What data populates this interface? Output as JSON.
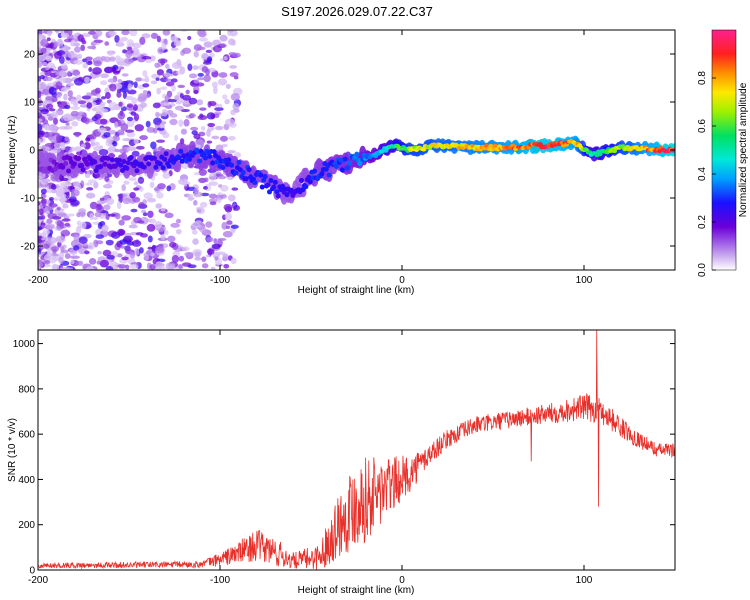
{
  "title": "S197.2026.029.07.22.C37",
  "colors": {
    "signal_line": "#e8302a",
    "axis": "#000000",
    "scatter_main": "#5a1fd6",
    "scatter_faint": "#c9b2f2"
  },
  "chart_data": [
    {
      "type": "heatmap",
      "xlabel": "Height of straight line (km)",
      "ylabel": "Frequency (Hz)",
      "xlim": [
        -200,
        150
      ],
      "ylim": [
        -25,
        25
      ],
      "xticks": [
        "-200",
        "-100",
        "0",
        "100"
      ],
      "yticks": [
        "20",
        "10",
        "0",
        "-10",
        "-20"
      ],
      "xtick_values": [
        -200,
        -100,
        0,
        100
      ],
      "ytick_values": [
        20,
        10,
        0,
        -10,
        -20
      ],
      "colorbar": {
        "label": "Normalized spectral amplitude",
        "range": [
          0,
          1
        ],
        "ticks": [
          "0.0",
          "0.2",
          "0.4",
          "0.6",
          "0.8"
        ],
        "tick_values": [
          0,
          0.2,
          0.4,
          0.6,
          0.8
        ]
      },
      "ridge": [
        {
          "x": -200,
          "f": -3,
          "a": 0.15
        },
        {
          "x": -170,
          "f": -3,
          "a": 0.22
        },
        {
          "x": -140,
          "f": -3,
          "a": 0.25
        },
        {
          "x": -115,
          "f": -1,
          "a": 0.3
        },
        {
          "x": -100,
          "f": -2,
          "a": 0.3
        },
        {
          "x": -85,
          "f": -5,
          "a": 0.3
        },
        {
          "x": -70,
          "f": -8,
          "a": 0.28
        },
        {
          "x": -60,
          "f": -9,
          "a": 0.25
        },
        {
          "x": -48,
          "f": -5,
          "a": 0.3
        },
        {
          "x": -35,
          "f": -3,
          "a": 0.32
        },
        {
          "x": -25,
          "f": -2,
          "a": 0.35
        },
        {
          "x": -15,
          "f": -1,
          "a": 0.4
        },
        {
          "x": -5,
          "f": 1,
          "a": 0.55
        },
        {
          "x": 5,
          "f": 0,
          "a": 0.7
        },
        {
          "x": 20,
          "f": 1,
          "a": 0.75
        },
        {
          "x": 40,
          "f": 0.5,
          "a": 0.8
        },
        {
          "x": 60,
          "f": 0.5,
          "a": 0.85
        },
        {
          "x": 80,
          "f": 1,
          "a": 0.95
        },
        {
          "x": 95,
          "f": 1.5,
          "a": 0.85
        },
        {
          "x": 105,
          "f": -1,
          "a": 0.5
        },
        {
          "x": 120,
          "f": 0.5,
          "a": 0.7
        },
        {
          "x": 150,
          "f": 0,
          "a": 1.0
        }
      ]
    },
    {
      "type": "line",
      "xlabel": "Height of straight line (km)",
      "ylabel": "SNR (10 * v/v)",
      "xlim": [
        -200,
        150
      ],
      "ylim": [
        0,
        1060
      ],
      "xticks": [
        "-200",
        "-100",
        "0",
        "100"
      ],
      "yticks": [
        "0",
        "200",
        "400",
        "600",
        "800",
        "1000"
      ],
      "xtick_values": [
        -200,
        -100,
        0,
        100
      ],
      "ytick_values": [
        0,
        200,
        400,
        600,
        800,
        1000
      ],
      "series": [
        {
          "name": "SNR",
          "envelope": [
            {
              "x": -200,
              "y": 20,
              "noise": 12
            },
            {
              "x": -150,
              "y": 22,
              "noise": 14
            },
            {
              "x": -110,
              "y": 25,
              "noise": 15
            },
            {
              "x": -95,
              "y": 60,
              "noise": 40
            },
            {
              "x": -80,
              "y": 110,
              "noise": 70
            },
            {
              "x": -70,
              "y": 80,
              "noise": 70
            },
            {
              "x": -60,
              "y": 40,
              "noise": 35
            },
            {
              "x": -45,
              "y": 60,
              "noise": 60
            },
            {
              "x": -35,
              "y": 200,
              "noise": 150
            },
            {
              "x": -25,
              "y": 300,
              "noise": 200
            },
            {
              "x": -15,
              "y": 330,
              "noise": 180
            },
            {
              "x": -5,
              "y": 380,
              "noise": 120
            },
            {
              "x": 5,
              "y": 430,
              "noise": 80
            },
            {
              "x": 15,
              "y": 510,
              "noise": 50
            },
            {
              "x": 25,
              "y": 580,
              "noise": 40
            },
            {
              "x": 40,
              "y": 640,
              "noise": 40
            },
            {
              "x": 60,
              "y": 665,
              "noise": 40
            },
            {
              "x": 80,
              "y": 690,
              "noise": 45
            },
            {
              "x": 100,
              "y": 720,
              "noise": 60
            },
            {
              "x": 110,
              "y": 700,
              "noise": 60
            },
            {
              "x": 125,
              "y": 600,
              "noise": 40
            },
            {
              "x": 140,
              "y": 530,
              "noise": 30
            },
            {
              "x": 150,
              "y": 530,
              "noise": 30
            }
          ],
          "spikes": [
            {
              "x": 107,
              "y": 1060
            },
            {
              "x": 108,
              "y": 280
            },
            {
              "x": 71,
              "y": 480
            }
          ]
        }
      ]
    }
  ]
}
